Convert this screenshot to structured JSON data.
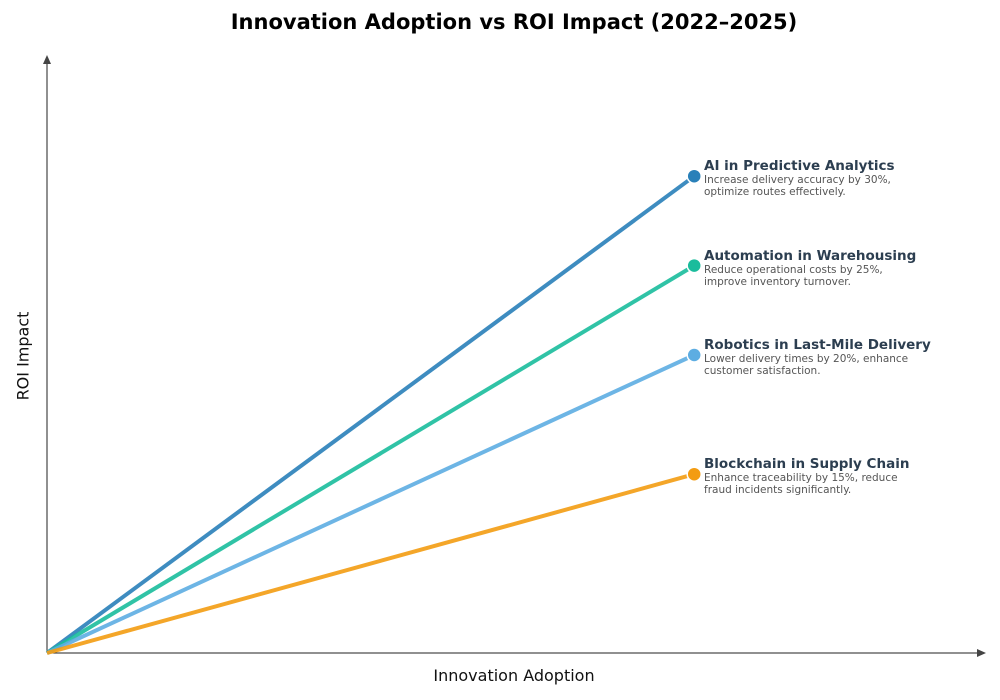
{
  "chart_data": {
    "type": "line",
    "title": "Innovation Adoption vs ROI Impact (2022–2025)",
    "xlabel": "Innovation Adoption",
    "ylabel": "ROI Impact",
    "xlim": [
      0,
      1
    ],
    "ylim": [
      0,
      1
    ],
    "grid": false,
    "ticks": false,
    "series": [
      {
        "name": "AI in Predictive Analytics",
        "description": "Increase delivery accuracy by 30%, optimize routes effectively.",
        "color": "#2980b9",
        "x": [
          0,
          0.69
        ],
        "y": [
          0,
          0.8
        ]
      },
      {
        "name": "Automation in Warehousing",
        "description": "Reduce operational costs by 25%, improve inventory turnover.",
        "color": "#1abc9c",
        "x": [
          0,
          0.69
        ],
        "y": [
          0,
          0.65
        ]
      },
      {
        "name": "Robotics in Last-Mile Delivery",
        "description": "Lower delivery times by 20%, enhance customer satisfaction.",
        "color": "#5dade2",
        "x": [
          0,
          0.69
        ],
        "y": [
          0,
          0.5
        ]
      },
      {
        "name": "Blockchain in Supply Chain",
        "description": "Enhance traceability by 15%, reduce fraud incidents significantly.",
        "color": "#f39c12",
        "x": [
          0,
          0.69
        ],
        "y": [
          0,
          0.3
        ]
      }
    ]
  }
}
